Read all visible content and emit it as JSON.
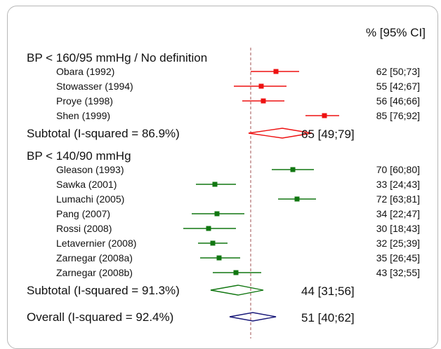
{
  "chart_data": {
    "type": "forest",
    "column_header": "% [95% CI]",
    "reference_line": 50,
    "x_range": [
      0,
      100
    ],
    "groups": [
      {
        "label": "BP < 160/95 mmHg / No definition",
        "color": "#ee1111",
        "studies": [
          {
            "name": "Obara (1992)",
            "est": 62,
            "lo": 50,
            "hi": 73,
            "ci_text": "62 [50;73]"
          },
          {
            "name": "Stowasser (1994)",
            "est": 55,
            "lo": 42,
            "hi": 67,
            "ci_text": "55 [42;67]"
          },
          {
            "name": "Proye (1998)",
            "est": 56,
            "lo": 46,
            "hi": 66,
            "ci_text": "56 [46;66]"
          },
          {
            "name": "Shen (1999)",
            "est": 85,
            "lo": 76,
            "hi": 92,
            "ci_text": "85 [76;92]"
          }
        ],
        "subtotal": {
          "label": "Subtotal  (I-squared = 86.9%)",
          "est": 65,
          "lo": 49,
          "hi": 79,
          "ci_text": "65 [49;79]"
        }
      },
      {
        "label": "BP < 140/90 mmHg",
        "color": "#117711",
        "studies": [
          {
            "name": "Gleason (1993)",
            "est": 70,
            "lo": 60,
            "hi": 80,
            "ci_text": "70 [60;80]"
          },
          {
            "name": "Sawka (2001)",
            "est": 33,
            "lo": 24,
            "hi": 43,
            "ci_text": "33 [24;43]"
          },
          {
            "name": "Lumachi (2005)",
            "est": 72,
            "lo": 63,
            "hi": 81,
            "ci_text": "72 [63;81]"
          },
          {
            "name": "Pang (2007)",
            "est": 34,
            "lo": 22,
            "hi": 47,
            "ci_text": "34 [22;47]"
          },
          {
            "name": "Rossi (2008)",
            "est": 30,
            "lo": 18,
            "hi": 43,
            "ci_text": "30 [18;43]"
          },
          {
            "name": "Letavernier (2008)",
            "est": 32,
            "lo": 25,
            "hi": 39,
            "ci_text": "32 [25;39]"
          },
          {
            "name": "Zarnegar (2008a)",
            "est": 35,
            "lo": 26,
            "hi": 45,
            "ci_text": "35 [26;45]"
          },
          {
            "name": "Zarnegar (2008b)",
            "est": 43,
            "lo": 32,
            "hi": 55,
            "ci_text": "43 [32;55]"
          }
        ],
        "subtotal": {
          "label": "Subtotal  (I-squared = 91.3%)",
          "est": 44,
          "lo": 31,
          "hi": 56,
          "ci_text": "44 [31;56]"
        }
      }
    ],
    "overall": {
      "label": "Overall  (I-squared = 92.4%)",
      "est": 51,
      "lo": 40,
      "hi": 62,
      "ci_text": "51 [40;62]",
      "color": "#1a1a7a"
    }
  }
}
